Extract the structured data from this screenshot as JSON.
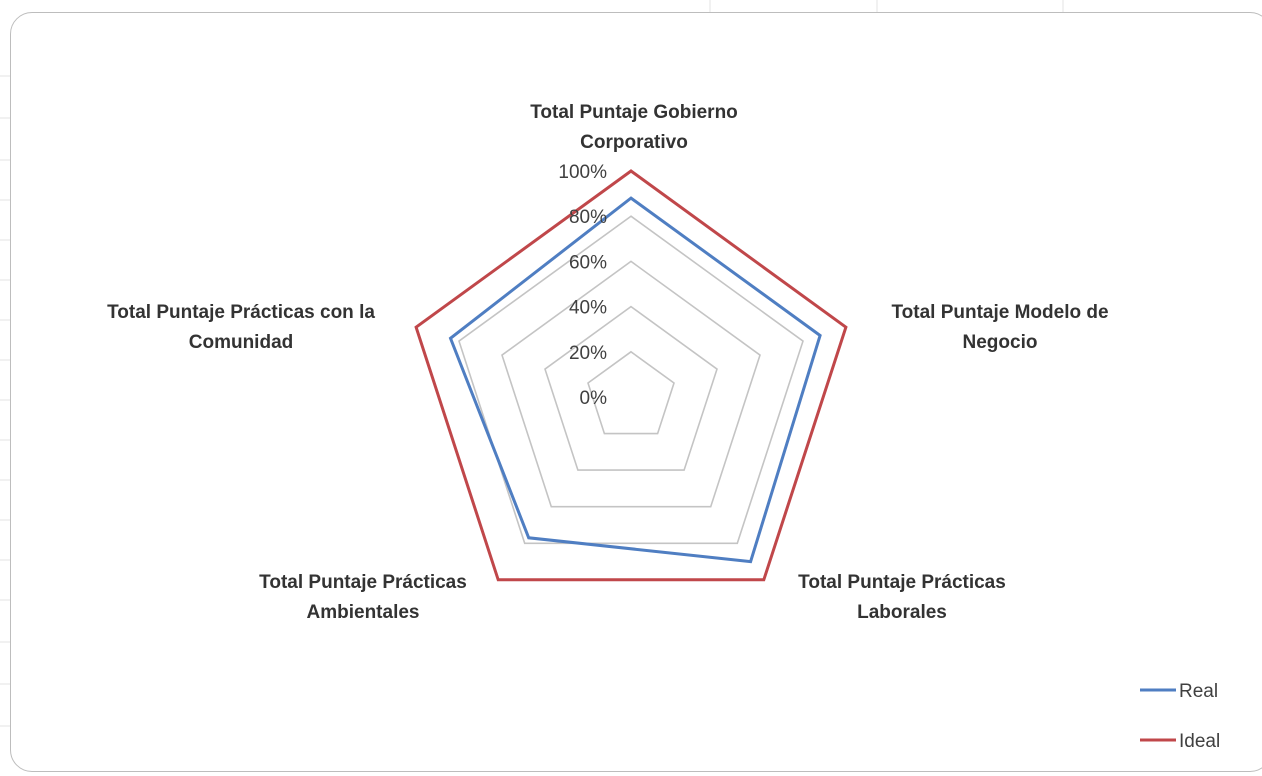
{
  "chart_data": {
    "type": "radar",
    "title": "",
    "categories": [
      "Total Puntaje Gobierno Corporativo",
      "Total Puntaje Modelo de Negocio",
      "Total Puntaje Prácticas Laborales",
      "Total Puntaje Prácticas Ambientales",
      "Total Puntaje Prácticas con la Comunidad"
    ],
    "category_label_lines": [
      [
        "Total Puntaje Gobierno",
        "Corporativo"
      ],
      [
        "Total Puntaje Modelo de",
        "Negocio"
      ],
      [
        "Total Puntaje Prácticas",
        "Laborales"
      ],
      [
        "Total Puntaje Prácticas",
        "Ambientales"
      ],
      [
        "Total Puntaje Prácticas con la",
        "Comunidad"
      ]
    ],
    "tick_labels": [
      "0%",
      "20%",
      "40%",
      "60%",
      "80%",
      "100%"
    ],
    "tick_values": [
      0,
      0.2,
      0.4,
      0.6,
      0.8,
      1.0
    ],
    "range": [
      0,
      1
    ],
    "grid": true,
    "legend_position": "bottom-right",
    "series": [
      {
        "name": "Real",
        "color": "#4F7EC2",
        "values": [
          0.88,
          0.88,
          0.9,
          0.77,
          0.84
        ]
      },
      {
        "name": "Ideal",
        "color": "#C0474A",
        "values": [
          1.0,
          1.0,
          1.0,
          1.0,
          1.0
        ]
      }
    ]
  }
}
